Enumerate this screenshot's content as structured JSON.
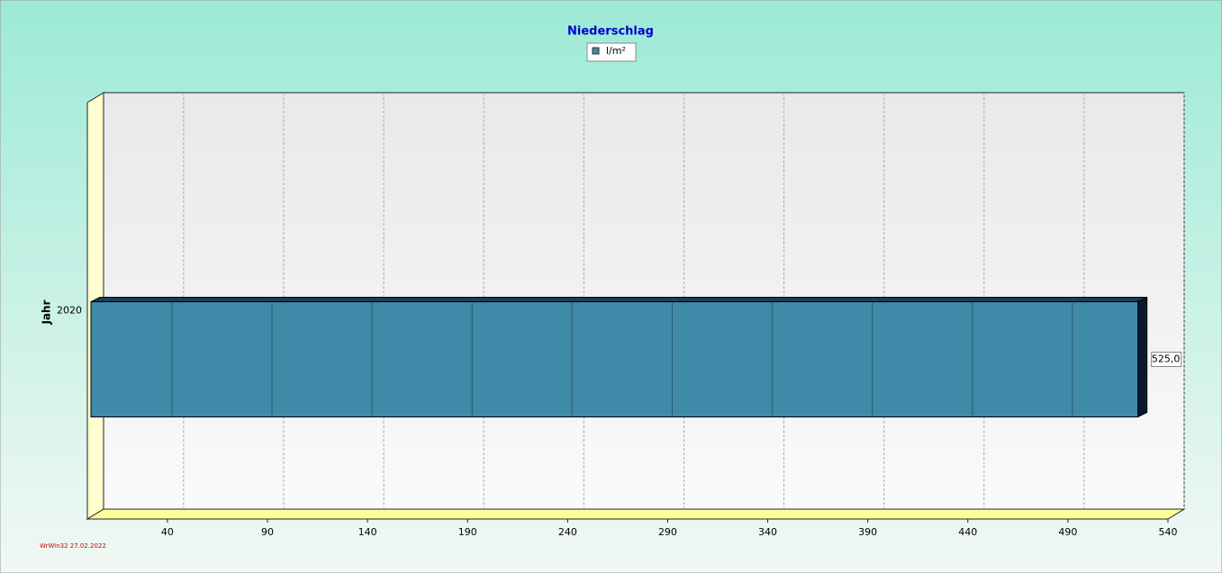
{
  "chart_data": {
    "type": "bar",
    "orientation": "horizontal",
    "title": "Niederschlag",
    "ylabel": "Jahr",
    "categories": [
      "2020"
    ],
    "series": [
      {
        "name": "l/m²",
        "color": "#3e8aa8",
        "values": [
          525
        ],
        "value_labels": [
          "525,0"
        ]
      }
    ],
    "xlim": [
      0,
      540
    ],
    "xticks": [
      40,
      90,
      140,
      190,
      240,
      290,
      340,
      390,
      440,
      490,
      540
    ],
    "grid": true,
    "legend": "top",
    "footer": "WrWin32  27.02.2022"
  }
}
